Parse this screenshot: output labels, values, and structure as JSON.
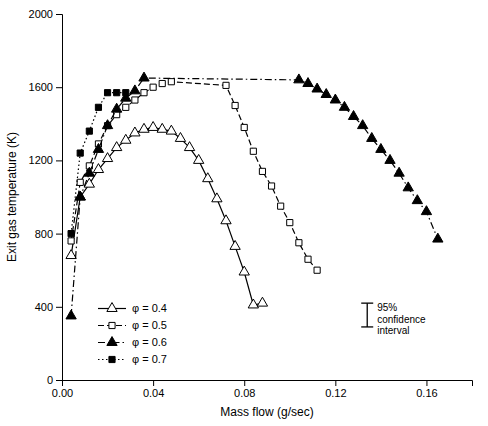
{
  "chart_data": {
    "type": "line",
    "xlabel": "Mass flow (g/sec)",
    "ylabel": "Exit gas temperature (K)",
    "xlim": [
      0,
      0.18
    ],
    "ylim": [
      0,
      2000
    ],
    "xticks": [
      {
        "value": 0,
        "label": "0.00"
      },
      0.04,
      0.08,
      0.12,
      0.16
    ],
    "yticks": [
      0,
      400,
      800,
      1200,
      1600,
      2000
    ],
    "grid": false,
    "legend": "lower left",
    "series": [
      {
        "name": "φ = 0.4",
        "color": "black",
        "marker": "triangle-open",
        "line_style": "solid",
        "x": [
          0.004,
          0.008,
          0.012,
          0.016,
          0.02,
          0.024,
          0.028,
          0.032,
          0.036,
          0.04,
          0.044,
          0.048,
          0.052,
          0.056,
          0.06,
          0.064,
          0.068,
          0.072,
          0.076,
          0.08,
          0.084,
          0.088
        ],
        "values": [
          680,
          1000,
          1070,
          1150,
          1210,
          1270,
          1310,
          1350,
          1370,
          1380,
          1370,
          1360,
          1320,
          1270,
          1200,
          1100,
          990,
          870,
          730,
          590,
          410,
          420
        ]
      },
      {
        "name": "φ = 0.5",
        "color": "black",
        "marker": "square-open",
        "line_style": "dashed",
        "x": [
          0.004,
          0.008,
          0.012,
          0.016,
          0.02,
          0.024,
          0.028,
          0.032,
          0.036,
          0.04,
          0.044,
          0.048,
          0.072,
          0.076,
          0.08,
          0.084,
          0.088,
          0.092,
          0.096,
          0.1,
          0.104,
          0.108,
          0.112
        ],
        "values": [
          760,
          1080,
          1170,
          1290,
          1390,
          1450,
          1490,
          1530,
          1570,
          1600,
          1620,
          1630,
          1610,
          1500,
          1380,
          1250,
          1140,
          1060,
          950,
          860,
          750,
          660,
          600
        ]
      },
      {
        "name": "φ = 0.6",
        "color": "black",
        "marker": "triangle",
        "line_style": "dashdot",
        "x": [
          0.004,
          0.008,
          0.012,
          0.016,
          0.02,
          0.024,
          0.028,
          0.032,
          0.036,
          0.104,
          0.108,
          0.112,
          0.116,
          0.12,
          0.124,
          0.128,
          0.132,
          0.136,
          0.14,
          0.144,
          0.148,
          0.152,
          0.156,
          0.16,
          0.165
        ],
        "values": [
          350,
          1000,
          1130,
          1260,
          1390,
          1480,
          1540,
          1580,
          1650,
          1640,
          1620,
          1590,
          1560,
          1530,
          1490,
          1440,
          1390,
          1320,
          1260,
          1200,
          1130,
          1050,
          980,
          920,
          770
        ]
      },
      {
        "name": "φ = 0.7",
        "color": "black",
        "marker": "square",
        "line_style": "dotted",
        "x": [
          0.004,
          0.008,
          0.012,
          0.016,
          0.02,
          0.024,
          0.028
        ],
        "values": [
          800,
          1240,
          1360,
          1490,
          1570,
          1570,
          1570
        ]
      }
    ],
    "annotations": [
      {
        "text": "95%\nconfidence\ninterval",
        "x": 0.134,
        "y_top": 420,
        "y_bottom": 290
      }
    ]
  }
}
